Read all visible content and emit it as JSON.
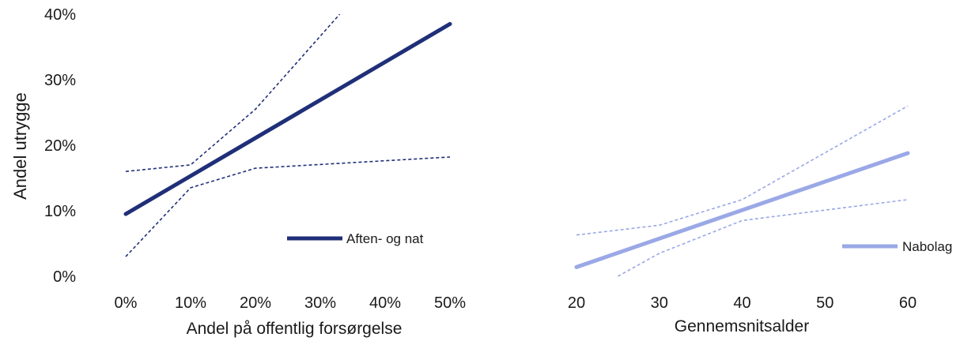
{
  "colors": {
    "dark": "#1f2f78",
    "light": "#9aa8e6",
    "text": "#1a1a1a"
  },
  "chart_data": [
    {
      "type": "line",
      "xlabel": "Andel på offentlig forsørgelse",
      "ylabel": "Andel utrygge",
      "xlim": [
        0,
        50
      ],
      "ylim": [
        0,
        40
      ],
      "x_ticks": [
        "0%",
        "10%",
        "20%",
        "30%",
        "40%",
        "50%"
      ],
      "y_ticks": [
        "0%",
        "10%",
        "20%",
        "30%",
        "40%"
      ],
      "legend": "right",
      "series": [
        {
          "name": "Aften- og nat",
          "role": "estimate",
          "color": "#1f2f78",
          "points": [
            [
              0,
              9.5
            ],
            [
              50,
              38.5
            ]
          ]
        },
        {
          "role": "upper-ci",
          "color": "#1f2f78",
          "points": [
            [
              0,
              16
            ],
            [
              10,
              17
            ],
            [
              20,
              25.5
            ],
            [
              33,
              40
            ]
          ]
        },
        {
          "role": "lower-ci",
          "color": "#1f2f78",
          "points": [
            [
              0,
              3
            ],
            [
              10,
              13.5
            ],
            [
              20,
              16.5
            ],
            [
              50,
              18.2
            ]
          ]
        }
      ]
    },
    {
      "type": "line",
      "xlabel": "Gennemsnitsalder",
      "xlim": [
        20,
        60
      ],
      "ylim": [
        0,
        40
      ],
      "x_ticks": [
        "20",
        "30",
        "40",
        "50",
        "60"
      ],
      "legend": "right",
      "series": [
        {
          "name": "Nabolag",
          "role": "estimate",
          "color": "#9aa8e6",
          "points": [
            [
              20,
              1.4
            ],
            [
              60,
              18.8
            ]
          ]
        },
        {
          "role": "upper-ci",
          "color": "#9aa8e6",
          "points": [
            [
              20,
              6.3
            ],
            [
              30,
              7.8
            ],
            [
              40,
              11.7
            ],
            [
              60,
              26
            ]
          ]
        },
        {
          "role": "lower-ci",
          "color": "#9aa8e6",
          "points": [
            [
              25,
              0
            ],
            [
              30,
              3.5
            ],
            [
              40,
              8.5
            ],
            [
              60,
              11.7
            ]
          ]
        }
      ]
    }
  ]
}
